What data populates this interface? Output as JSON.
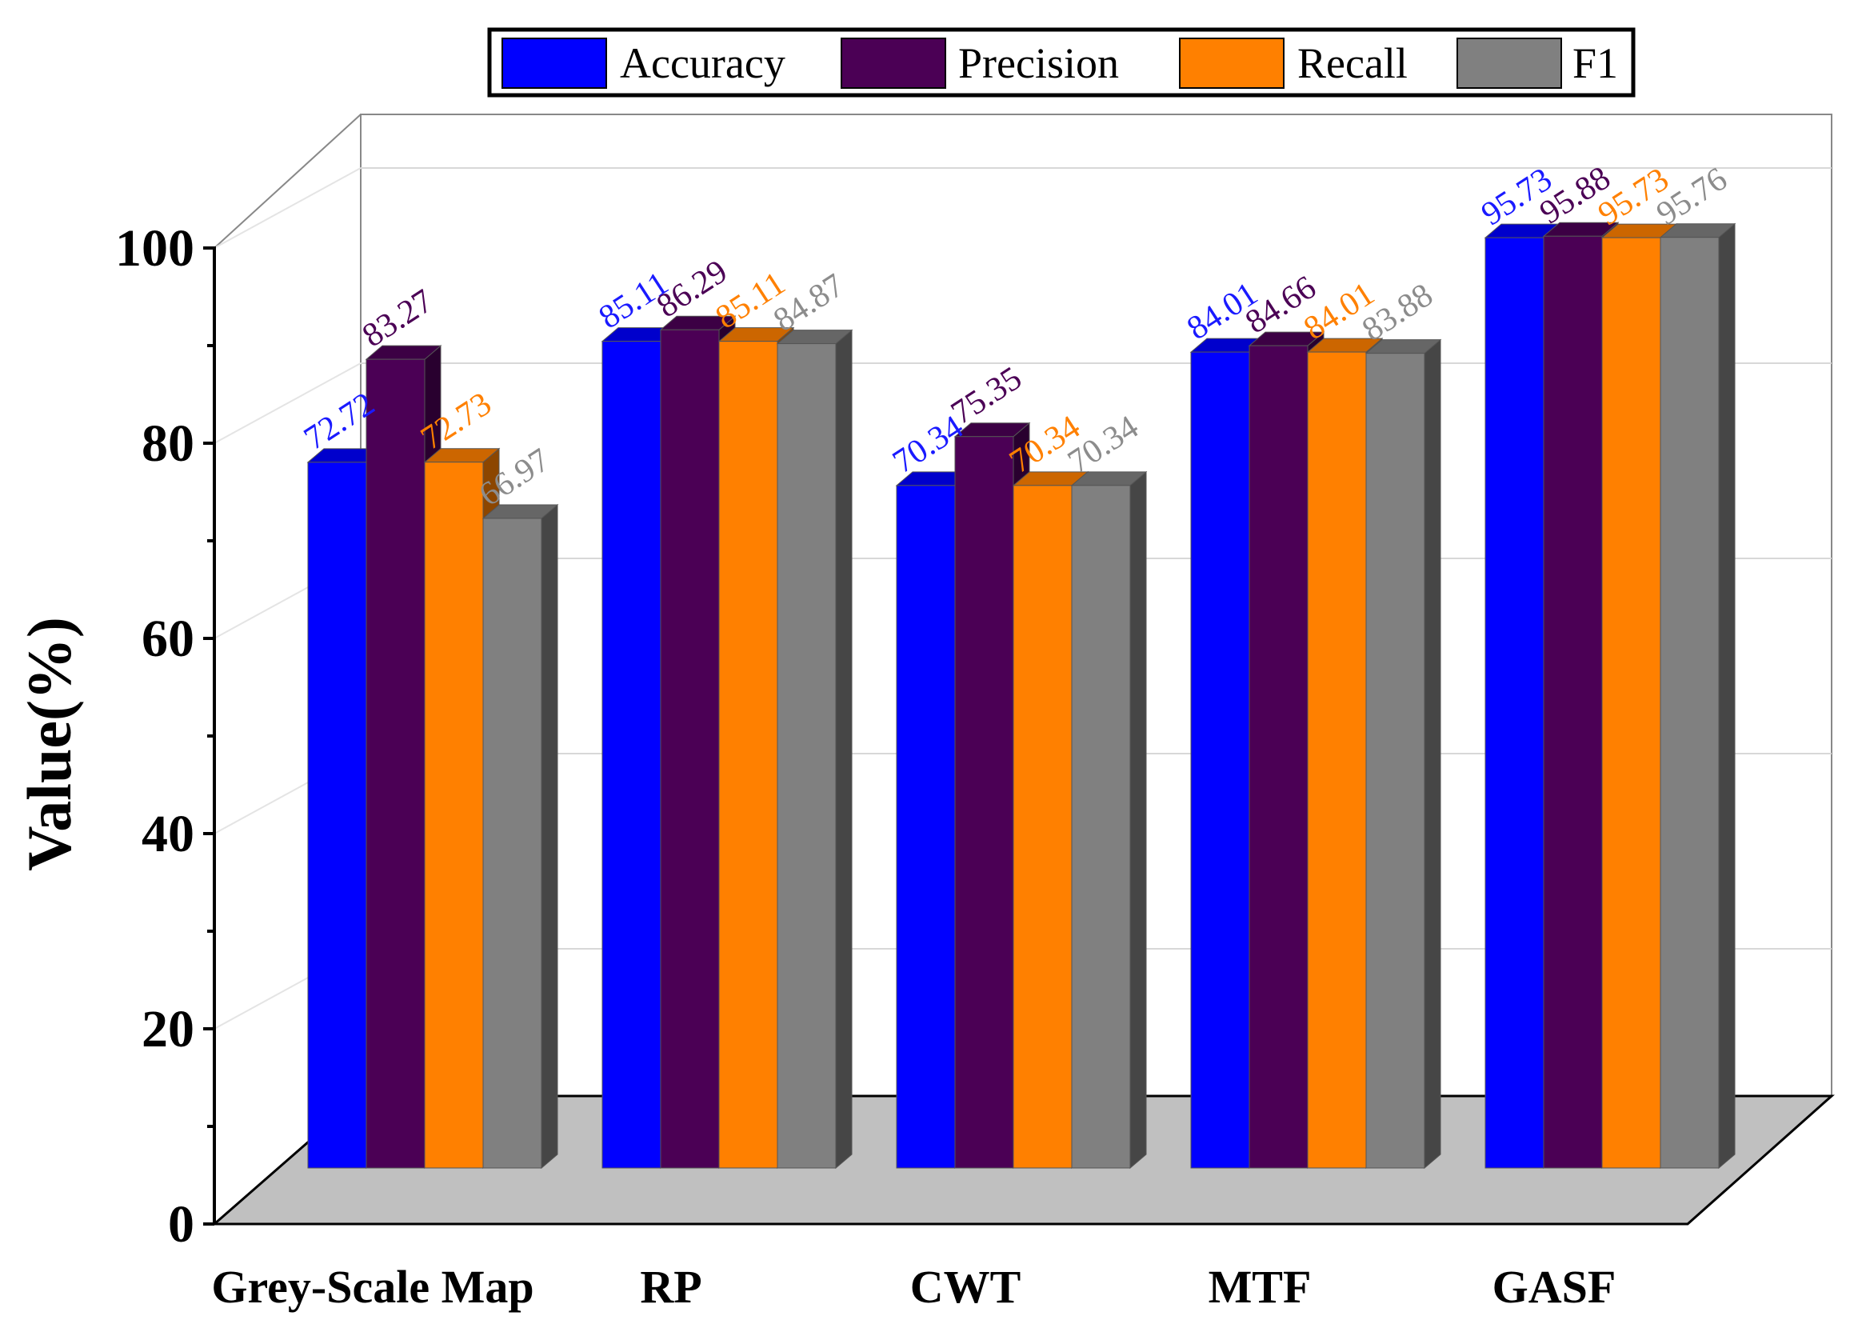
{
  "chart_data": {
    "type": "bar",
    "title": "",
    "xlabel": "",
    "ylabel": "Value(%)",
    "ylim": [
      0,
      100
    ],
    "yticks": [
      "0",
      "20",
      "40",
      "60",
      "80",
      "100"
    ],
    "categories": [
      "Grey-Scale Map",
      "RP",
      "CWT",
      "MTF",
      "GASF"
    ],
    "series": [
      {
        "name": "Accuracy",
        "color": "#0000FF",
        "label_color": "#1A1AFF",
        "values": [
          72.72,
          85.11,
          70.34,
          84.01,
          95.73
        ]
      },
      {
        "name": "Precision",
        "color": "#4B0055",
        "label_color": "#4B0055",
        "values": [
          83.27,
          86.29,
          75.35,
          84.66,
          95.88
        ]
      },
      {
        "name": "Recall",
        "color": "#FF8000",
        "label_color": "#FF8000",
        "values": [
          72.73,
          85.11,
          70.34,
          84.01,
          95.73
        ]
      },
      {
        "name": "F1",
        "color": "#808080",
        "label_color": "#8C8C8C",
        "values": [
          66.97,
          84.87,
          70.34,
          83.88,
          95.76
        ]
      }
    ],
    "data_labels": [
      [
        "72.72",
        "85.11",
        "70.34",
        "84.01",
        "95.73"
      ],
      [
        "83.27",
        "86.29",
        "75.35",
        "84.66",
        "95.88"
      ],
      [
        "72.73",
        "85.11",
        "70.34",
        "84.01",
        "95.73"
      ],
      [
        "66.97",
        "84.87",
        "70.34",
        "83.88",
        "95.76"
      ]
    ],
    "legend_position": "top",
    "grid": true,
    "style": "3d-bar"
  }
}
